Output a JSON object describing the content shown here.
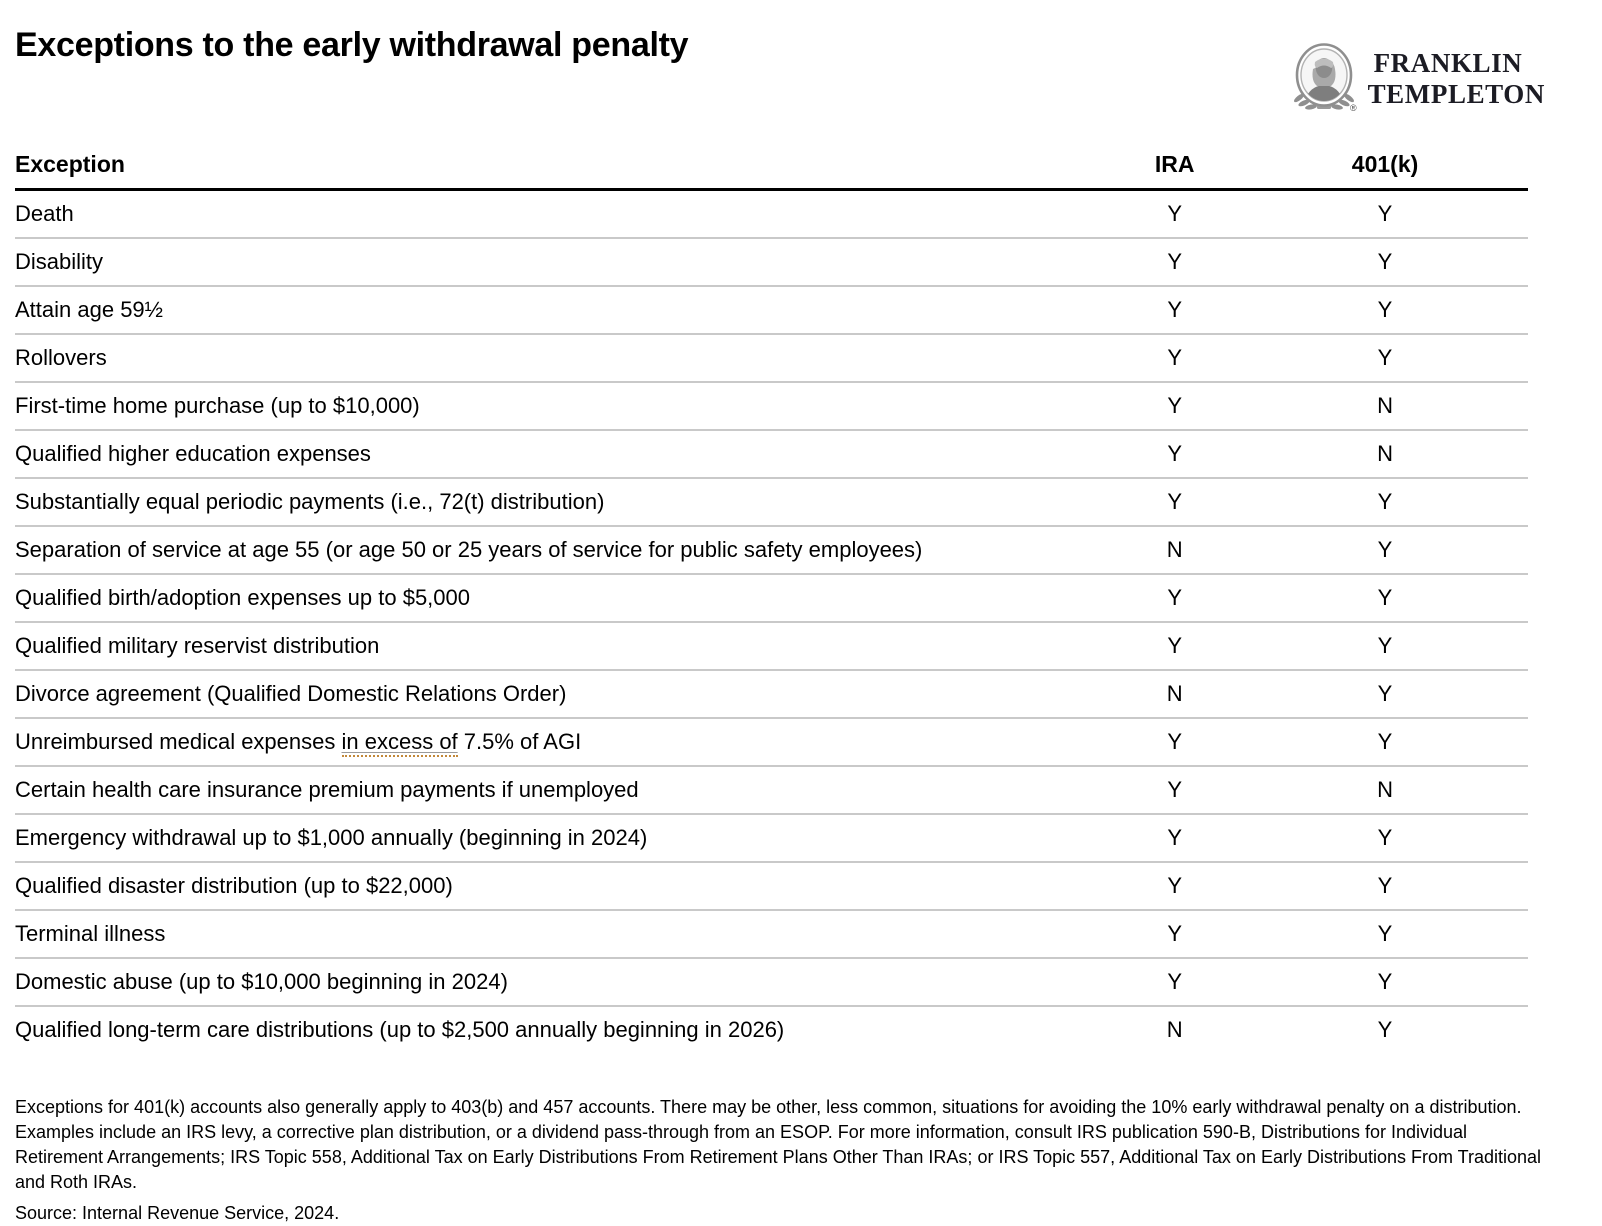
{
  "page": {
    "title": "Exceptions to the early withdrawal penalty"
  },
  "logo": {
    "line1": "FRANKLIN",
    "line2": "TEMPLETON",
    "registered_mark": "®"
  },
  "table": {
    "headers": {
      "exception": "Exception",
      "ira": "IRA",
      "k401": "401(k)"
    },
    "rows": [
      {
        "label": "Death",
        "ira": "Y",
        "k401": "Y"
      },
      {
        "label": "Disability",
        "ira": "Y",
        "k401": "Y"
      },
      {
        "label": "Attain age 59½",
        "ira": "Y",
        "k401": "Y"
      },
      {
        "label": "Rollovers",
        "ira": "Y",
        "k401": "Y"
      },
      {
        "label": "First-time home purchase (up to $10,000)",
        "ira": "Y",
        "k401": "N"
      },
      {
        "label": "Qualified higher education expenses",
        "ira": "Y",
        "k401": "N"
      },
      {
        "label": "Substantially equal periodic payments (i.e., 72(t) distribution)",
        "ira": "Y",
        "k401": "Y"
      },
      {
        "label": "Separation of service at age 55 (or age 50 or 25 years of service for public safety employees)",
        "ira": "N",
        "k401": "Y"
      },
      {
        "label": "Qualified birth/adoption expenses up to $5,000",
        "ira": "Y",
        "k401": "Y"
      },
      {
        "label": "Qualified military reservist distribution",
        "ira": "Y",
        "k401": "Y"
      },
      {
        "label": "Divorce agreement (Qualified Domestic Relations Order)",
        "ira": "N",
        "k401": "Y"
      },
      {
        "label": "Unreimbursed medical expenses in excess of 7.5% of AGI",
        "underline": "in excess of",
        "ira": "Y",
        "k401": "Y"
      },
      {
        "label": "Certain health care insurance premium payments if unemployed",
        "ira": "Y",
        "k401": "N"
      },
      {
        "label": "Emergency withdrawal up to $1,000 annually (beginning in 2024)",
        "ira": "Y",
        "k401": "Y"
      },
      {
        "label": "Qualified disaster distribution (up to $22,000)",
        "ira": "Y",
        "k401": "Y"
      },
      {
        "label": "Terminal illness",
        "ira": "Y",
        "k401": "Y"
      },
      {
        "label": "Domestic abuse (up to $10,000 beginning in 2024)",
        "ira": "Y",
        "k401": "Y"
      },
      {
        "label": "Qualified long-term care distributions (up to $2,500 annually beginning in 2026)",
        "ira": "N",
        "k401": "Y"
      }
    ]
  },
  "footnotes": {
    "paragraph": "Exceptions for 401(k) accounts also generally apply to 403(b) and 457 accounts. There may be other, less common, situations for avoiding the 10% early withdrawal penalty on a distribution. Examples include an IRS levy, a corrective plan distribution, or a dividend pass-through from an ESOP. For more information, consult IRS publication 590-B, Distributions for Individual Retirement Arrangements; IRS Topic 558, Additional Tax on Early Distributions From Retirement Plans Other Than IRAs; or IRS Topic 557, Additional Tax on Early Distributions From Traditional and Roth IRAs.",
    "source": "Source: Internal Revenue Service, 2024."
  },
  "colors": {
    "text": "#000000",
    "header_rule": "#000000",
    "row_divider": "#c9c9c9",
    "underline_dotted": "#c2883a",
    "logo_text": "#1c1c24",
    "emblem_gray": "#8f8f8f"
  }
}
